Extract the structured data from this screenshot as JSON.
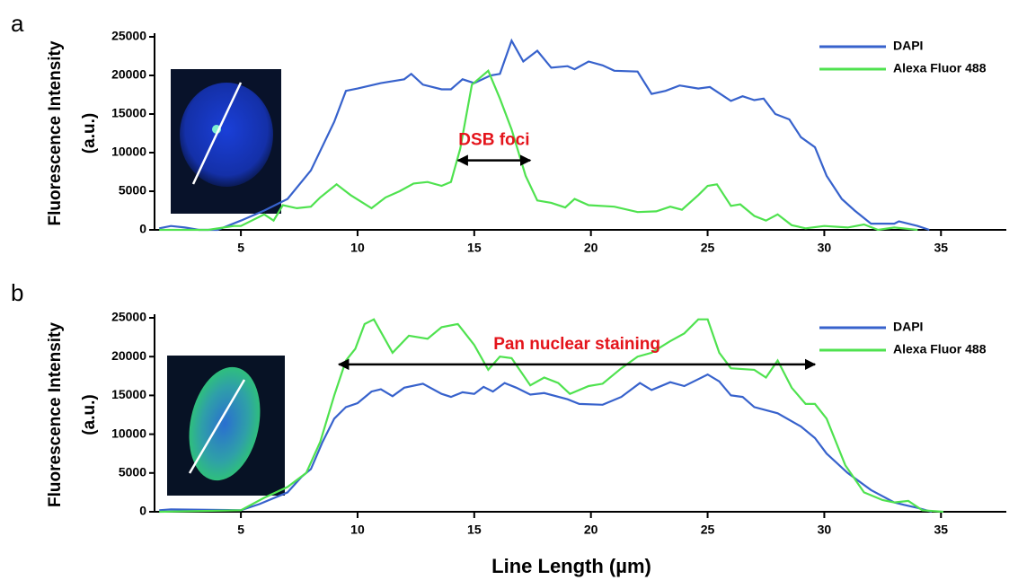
{
  "chart_data": [
    {
      "type": "line",
      "panel": "a",
      "ylabel": [
        "Fluorescence Intensity",
        "(a.u.)"
      ],
      "xlim": [
        1.3,
        37.8
      ],
      "xticks": [
        5,
        10,
        15,
        20,
        25,
        30,
        35
      ],
      "ylim": [
        0,
        25000
      ],
      "yticks": [
        0,
        5000,
        10000,
        15000,
        20000,
        25000
      ],
      "legend": "top-right",
      "annotation": {
        "text": "DSB foci",
        "x": [
          14.3,
          17.4
        ],
        "y": 9000
      },
      "series": [
        {
          "name": "DAPI",
          "color": "#3762cc",
          "x": [
            1.5,
            2,
            2.6,
            3.2,
            4,
            5,
            6,
            7,
            8,
            9,
            9.5,
            10,
            11,
            12,
            12.3,
            12.8,
            13.6,
            14,
            14.5,
            15,
            15.7,
            16.1,
            16.6,
            17.1,
            17.7,
            18.3,
            19,
            19.3,
            19.9,
            20.5,
            21,
            22,
            22.6,
            23.2,
            23.8,
            24.6,
            25.1,
            26,
            26.5,
            27,
            27.4,
            27.9,
            28.5,
            29,
            29.6,
            30.1,
            30.75,
            31.3,
            32,
            33,
            33.2,
            34,
            34.5
          ],
          "values": [
            200,
            500,
            300,
            0,
            0,
            1200,
            2500,
            4000,
            7700,
            14000,
            18000,
            18300,
            19000,
            19500,
            20200,
            18800,
            18200,
            18200,
            19500,
            19000,
            20000,
            20200,
            24500,
            21800,
            23200,
            21000,
            21200,
            20800,
            21800,
            21300,
            20600,
            20500,
            17600,
            18000,
            18700,
            18300,
            18500,
            16700,
            17300,
            16800,
            17000,
            15000,
            14300,
            12000,
            10700,
            7000,
            4000,
            2500,
            800,
            800,
            1100,
            500,
            0
          ]
        },
        {
          "name": "Alexa Fluor 488",
          "color": "#4fe24f",
          "x": [
            1.5,
            3.6,
            4.7,
            5,
            6,
            6.4,
            6.8,
            7.4,
            8,
            8.4,
            9.1,
            9.7,
            10.6,
            11.2,
            11.8,
            12.4,
            13,
            13.6,
            14,
            14.4,
            14.9,
            15.6,
            16.1,
            16.6,
            17.2,
            17.7,
            18.3,
            18.9,
            19.3,
            19.9,
            21,
            22,
            22.8,
            23.4,
            23.9,
            24.6,
            25,
            25.4,
            26,
            26.4,
            27,
            27.5,
            28,
            28.6,
            29.2,
            30,
            31,
            31.7,
            32.3,
            33,
            34
          ],
          "values": [
            0,
            0,
            500,
            500,
            2000,
            1200,
            3200,
            2800,
            3000,
            4200,
            5900,
            4500,
            2800,
            4200,
            5000,
            6000,
            6200,
            5700,
            6200,
            10500,
            18800,
            20600,
            17000,
            13000,
            7000,
            3800,
            3500,
            2900,
            4000,
            3200,
            3000,
            2300,
            2400,
            3000,
            2600,
            4500,
            5700,
            5900,
            3100,
            3300,
            1800,
            1200,
            2000,
            600,
            200,
            500,
            300,
            700,
            0,
            300,
            0
          ]
        }
      ]
    },
    {
      "type": "line",
      "panel": "b",
      "ylabel": [
        "Fluorescence Intensity",
        "(a.u.)"
      ],
      "xlabel": "Line Length (µm)",
      "xlim": [
        1.3,
        37.8
      ],
      "xticks": [
        5,
        10,
        15,
        20,
        25,
        30,
        35
      ],
      "ylim": [
        0,
        25000
      ],
      "yticks": [
        0,
        5000,
        10000,
        15000,
        20000,
        25000
      ],
      "legend": "top-right",
      "annotation": {
        "text": "Pan nuclear staining",
        "x": [
          9.2,
          29.6
        ],
        "y": 19000
      },
      "series": [
        {
          "name": "DAPI",
          "color": "#3762cc",
          "x": [
            1.5,
            2,
            5,
            5.8,
            7,
            7.6,
            8,
            8.5,
            9,
            9.5,
            10,
            10.6,
            11,
            11.5,
            12,
            12.8,
            13.6,
            14,
            14.5,
            15,
            15.4,
            15.8,
            16.3,
            16.8,
            17.4,
            18,
            19,
            19.5,
            20.5,
            21.3,
            22.1,
            22.6,
            23.4,
            24,
            24.6,
            25,
            25.5,
            26,
            26.5,
            27,
            28,
            29,
            29.6,
            30.1,
            31,
            32,
            32.5,
            33,
            33.4,
            34,
            34.6
          ],
          "values": [
            200,
            300,
            200,
            1000,
            2500,
            4500,
            5500,
            9000,
            12000,
            13500,
            14000,
            15500,
            15800,
            14900,
            16000,
            16500,
            15200,
            14800,
            15400,
            15200,
            16100,
            15500,
            16600,
            16000,
            15100,
            15300,
            14500,
            13900,
            13800,
            14800,
            16600,
            15700,
            16700,
            16200,
            17100,
            17700,
            16800,
            15000,
            14800,
            13500,
            12700,
            11000,
            9500,
            7500,
            5000,
            2800,
            2000,
            1200,
            900,
            500,
            0
          ]
        },
        {
          "name": "Alexa Fluor 488",
          "color": "#4fe24f",
          "x": [
            1.5,
            5,
            6,
            7,
            7.8,
            8.4,
            9,
            9.5,
            9.9,
            10.3,
            10.7,
            11.5,
            12.2,
            13,
            13.6,
            14.3,
            15,
            15.6,
            16.1,
            16.6,
            17.4,
            18,
            18.6,
            19.1,
            19.9,
            20.5,
            21.3,
            22,
            22.6,
            23.4,
            24,
            24.6,
            25,
            25.5,
            26,
            27,
            27.5,
            28,
            28.6,
            29.2,
            29.6,
            30.1,
            30.9,
            31.7,
            32.5,
            33,
            33.6,
            34.2,
            35.1
          ],
          "values": [
            0,
            200,
            1800,
            3200,
            5000,
            9000,
            15000,
            19500,
            21000,
            24200,
            24800,
            20500,
            22700,
            22300,
            23800,
            24200,
            21500,
            18300,
            20000,
            19800,
            16300,
            17300,
            16600,
            15200,
            16200,
            16500,
            18500,
            20000,
            20500,
            22000,
            23000,
            24800,
            24800,
            20500,
            18500,
            18300,
            17300,
            19500,
            16000,
            13900,
            13900,
            12000,
            6000,
            2500,
            1500,
            1200,
            1400,
            200,
            0
          ]
        }
      ]
    }
  ]
}
